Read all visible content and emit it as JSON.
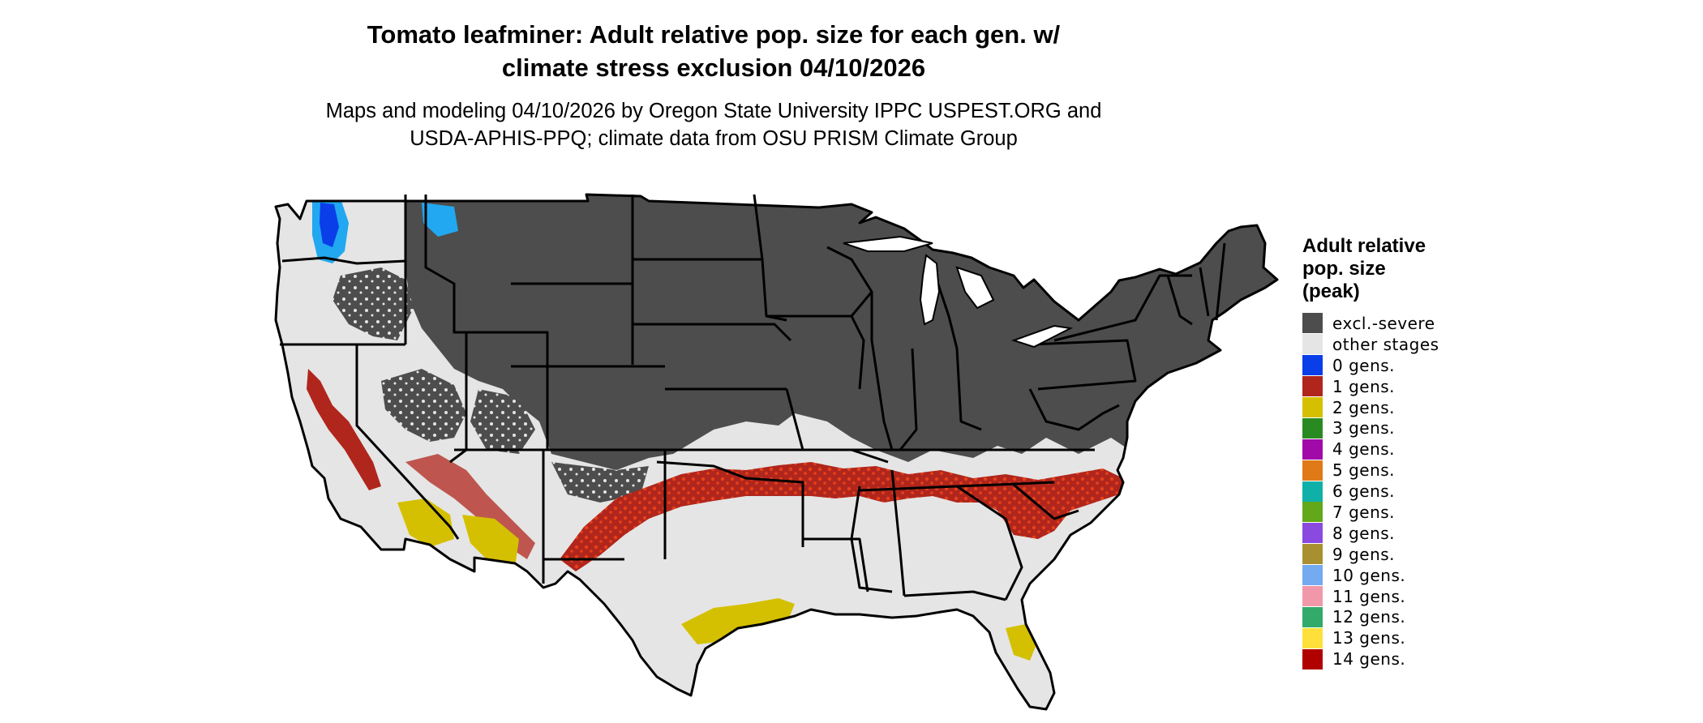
{
  "title": "Tomato leafminer: Adult relative pop. size for each gen. w/\nclimate stress exclusion 04/10/2026",
  "subtitle": "Maps and modeling 04/10/2026 by Oregon State University IPPC USPEST.ORG and\nUSDA-APHIS-PPQ; climate data from OSU PRISM Climate Group",
  "legend": {
    "title": "Adult relative\npop. size\n(peak)",
    "items": [
      {
        "label": "excl.-severe",
        "color": "#4d4d4d"
      },
      {
        "label": "other stages",
        "color": "#e5e5e5"
      },
      {
        "label": "0 gens.",
        "color": "#0a3ee8"
      },
      {
        "label": "1 gens.",
        "color": "#b0261c"
      },
      {
        "label": "2 gens.",
        "color": "#d4c000"
      },
      {
        "label": "3 gens.",
        "color": "#2a8a22"
      },
      {
        "label": "4 gens.",
        "color": "#a10aa8"
      },
      {
        "label": "5 gens.",
        "color": "#e07a18"
      },
      {
        "label": "6 gens.",
        "color": "#0fb0a8"
      },
      {
        "label": "7 gens.",
        "color": "#62a81a"
      },
      {
        "label": "8 gens.",
        "color": "#8a4ae0"
      },
      {
        "label": "9 gens.",
        "color": "#a89030"
      },
      {
        "label": "10 gens.",
        "color": "#74aaf0"
      },
      {
        "label": "11 gens.",
        "color": "#f098aa"
      },
      {
        "label": "12 gens.",
        "color": "#32aa6a"
      },
      {
        "label": "13 gens.",
        "color": "#ffe03a"
      },
      {
        "label": "14 gens.",
        "color": "#b00000"
      }
    ]
  },
  "map": {
    "region": "contiguous-united-states",
    "colors": {
      "excluded": "#4d4d4d",
      "other": "#e5e5e5",
      "gen0": "#0a3ee8",
      "gen0_light": "#22a8f0",
      "gen1": "#b0261c",
      "gen1_orange": "#e8401a",
      "gen2": "#d4c000",
      "border": "#000000"
    }
  }
}
